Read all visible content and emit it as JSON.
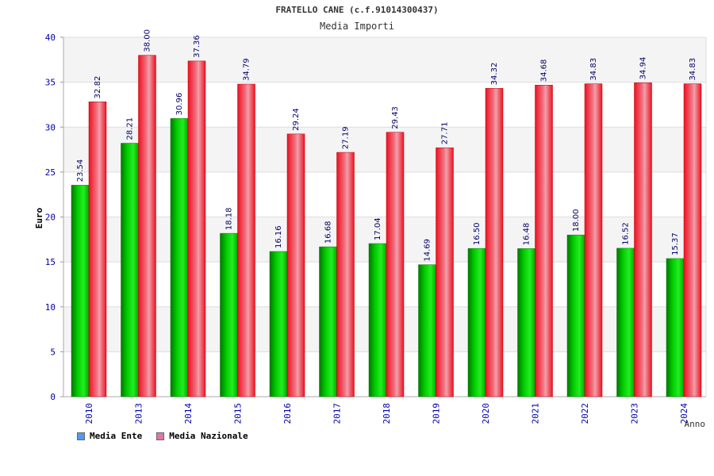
{
  "title": "FRATELLO CANE (c.f.91014300437)",
  "chart_data": {
    "type": "bar",
    "subtitle": "Media Importi",
    "xlabel": "Anno",
    "ylabel": "Euro",
    "ylim": [
      0,
      40
    ],
    "yticks": [
      0,
      5,
      10,
      15,
      20,
      25,
      30,
      35,
      40
    ],
    "categories": [
      "2010",
      "2013",
      "2014",
      "2015",
      "2016",
      "2017",
      "2018",
      "2019",
      "2020",
      "2021",
      "2022",
      "2023",
      "2024"
    ],
    "series": [
      {
        "name": "Media Ente",
        "color": "#00cc00",
        "values": [
          23.54,
          28.21,
          30.96,
          18.18,
          16.16,
          16.68,
          17.04,
          14.69,
          16.5,
          16.48,
          18.0,
          16.52,
          15.37
        ],
        "labels": [
          "23.54",
          "28.21",
          "30.96",
          "18.18",
          "16.16",
          "16.68",
          "17.04",
          "14.69",
          "16.50",
          "16.48",
          "18.00",
          "16.52",
          "15.37"
        ]
      },
      {
        "name": "Media Nazionale",
        "color": "#ee1122",
        "values": [
          32.82,
          38.0,
          37.36,
          34.79,
          29.24,
          27.19,
          29.43,
          27.71,
          34.32,
          34.68,
          34.83,
          34.94,
          34.83
        ],
        "labels": [
          "32.82",
          "38.00",
          "37.36",
          "34.79",
          "29.24",
          "27.19",
          "29.43",
          "27.71",
          "34.32",
          "34.68",
          "34.83",
          "34.94",
          "34.83"
        ]
      }
    ],
    "grid": true,
    "legend_position": "bottom-left"
  },
  "legend": [
    {
      "label": "Media Ente",
      "color": "#5599ee"
    },
    {
      "label": "Media Nazionale",
      "color": "#dd77aa"
    }
  ]
}
